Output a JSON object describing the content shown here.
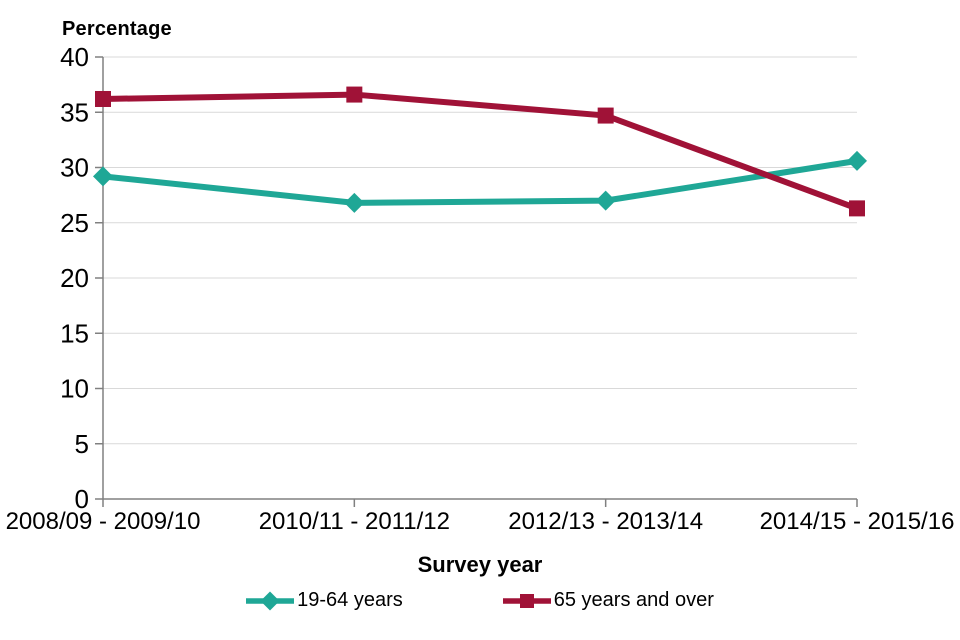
{
  "chart_data": {
    "type": "line",
    "categories": [
      "2008/09 - 2009/10",
      "2010/11 - 2011/12",
      "2012/13 - 2013/14",
      "2014/15 - 2015/16"
    ],
    "series": [
      {
        "name": "19-64 years",
        "values": [
          29.2,
          26.8,
          27.0,
          30.6
        ],
        "color": "#1FA796",
        "marker": "diamond"
      },
      {
        "name": "65 years and over",
        "values": [
          36.2,
          36.6,
          34.7,
          26.3
        ],
        "color": "#A01237",
        "marker": "square"
      }
    ],
    "ylabel": "Percentage",
    "xlabel": "Survey year",
    "ylim": [
      0,
      40
    ],
    "ytick_step": 5,
    "yticks": [
      0,
      5,
      10,
      15,
      20,
      25,
      30,
      35,
      40
    ],
    "grid": true,
    "grid_color": "#D9D9D9",
    "axis_color": "#808080",
    "text_color": "#000000",
    "legend_position": "bottom"
  }
}
